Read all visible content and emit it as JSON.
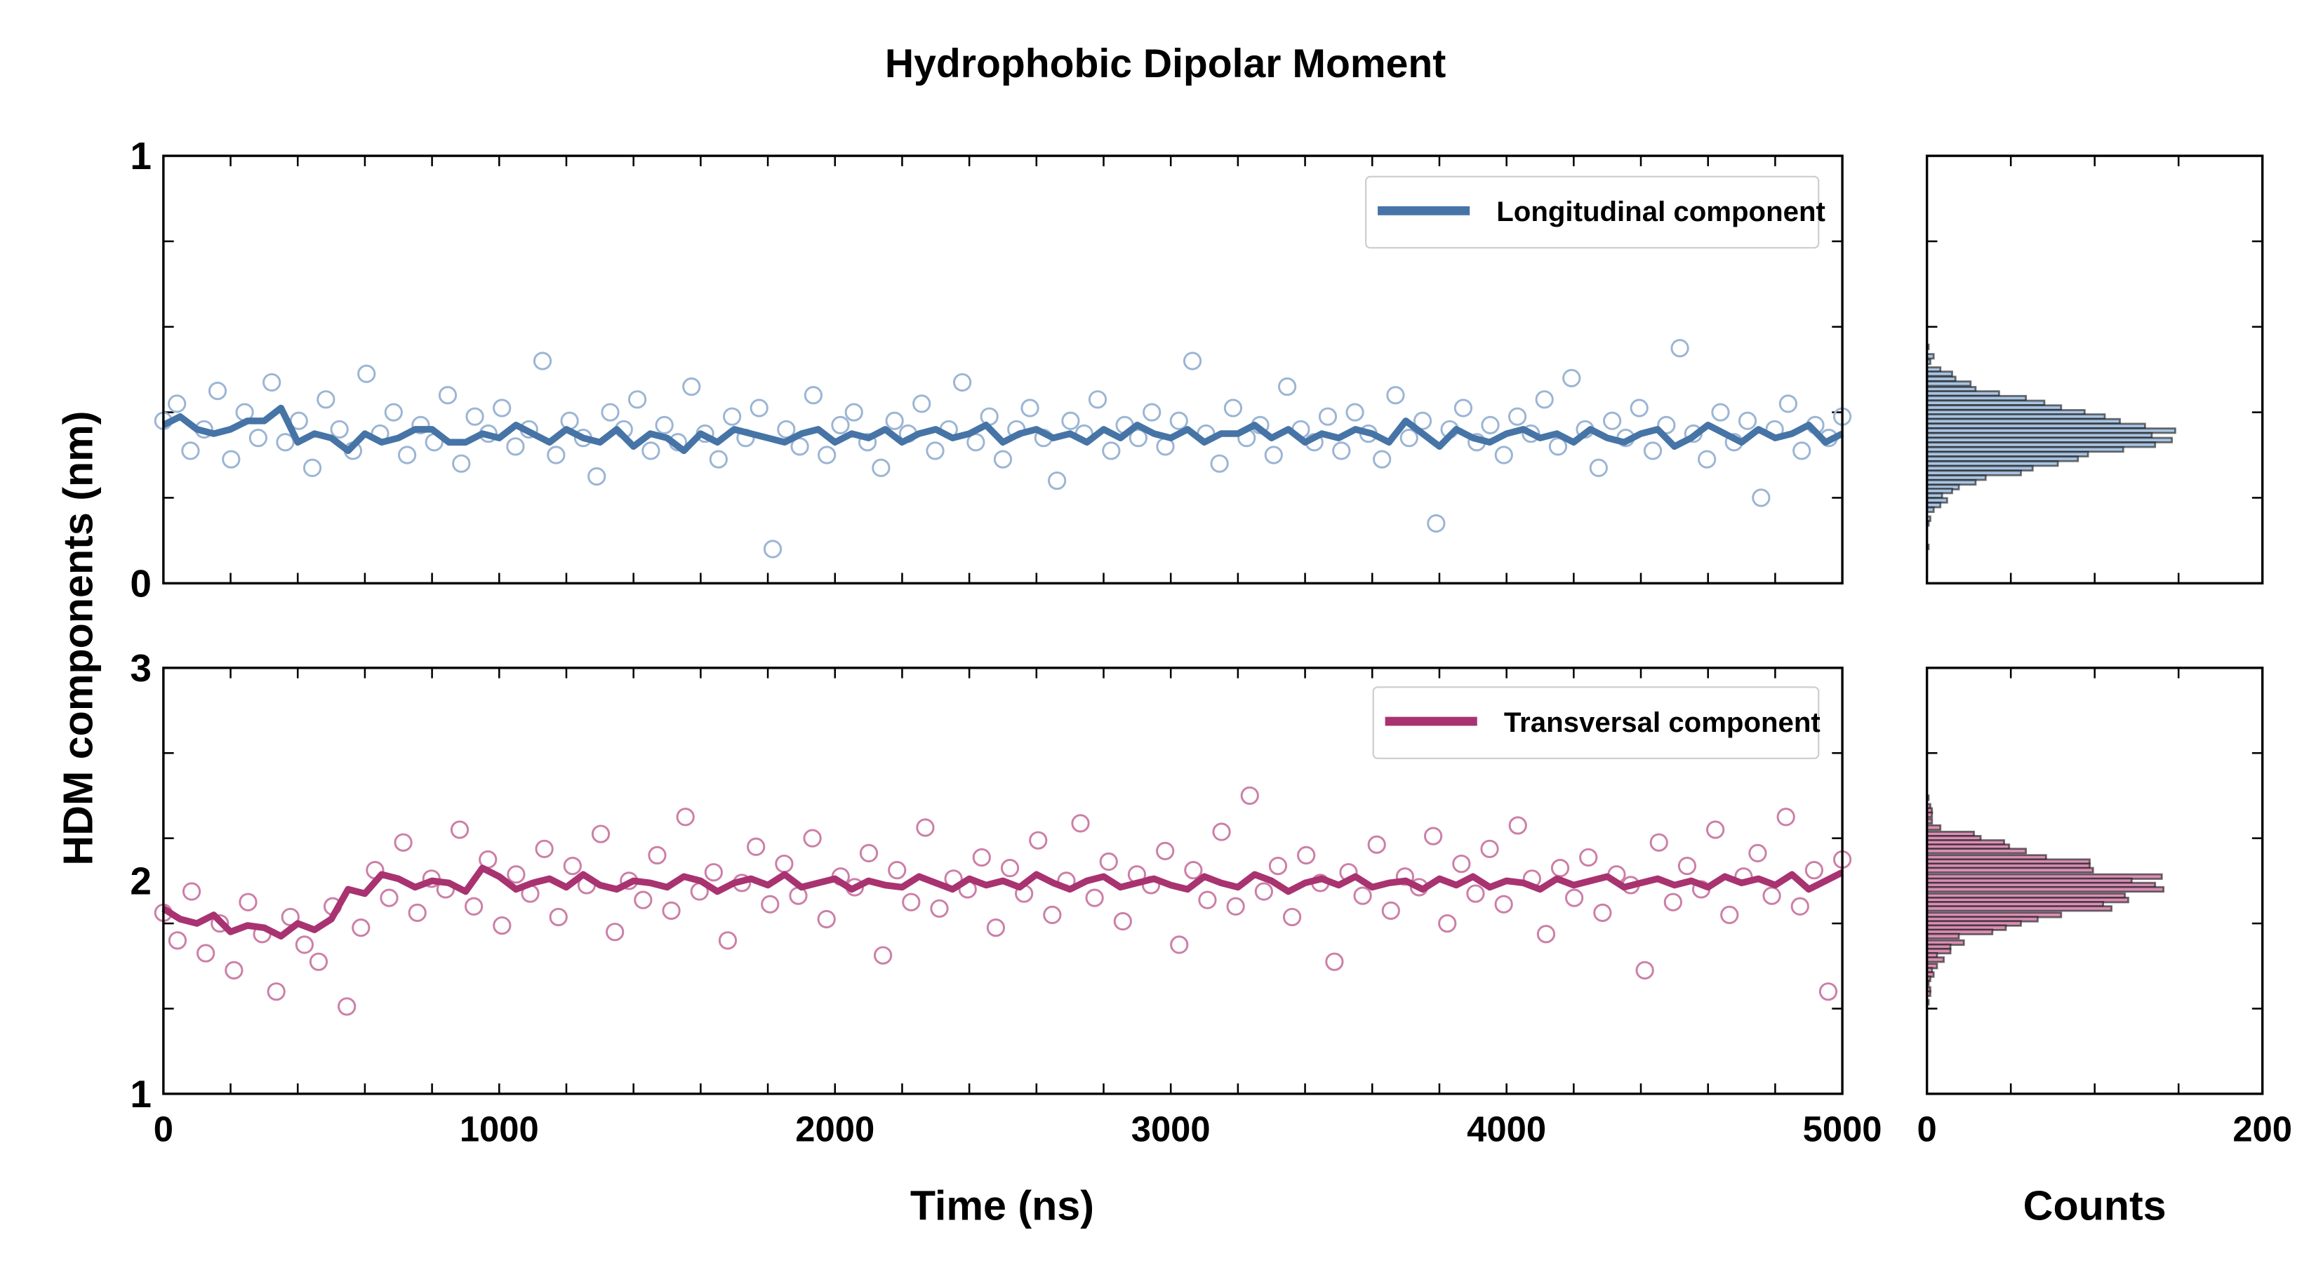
{
  "title": "Hydrophobic Dipolar Moment",
  "shared_ylabel": "HDM components (nm)",
  "chart_data": [
    {
      "type": "scatter",
      "panel": "top-time-series",
      "legend": "Longitudinal component",
      "legend_placement": "top-right",
      "color_line": "#4674a6",
      "color_marker": "#9bb5d4",
      "xlabel": "",
      "xlim": [
        0,
        5000
      ],
      "ylim": [
        0,
        1
      ],
      "yticks": [
        0,
        1
      ],
      "ytick_labels": [
        "0",
        "1"
      ],
      "scatter_y": [
        0.38,
        0.42,
        0.31,
        0.36,
        0.45,
        0.29,
        0.4,
        0.34,
        0.47,
        0.33,
        0.38,
        0.27,
        0.43,
        0.36,
        0.31,
        0.49,
        0.35,
        0.4,
        0.3,
        0.37,
        0.33,
        0.44,
        0.28,
        0.39,
        0.35,
        0.41,
        0.32,
        0.36,
        0.52,
        0.3,
        0.38,
        0.34,
        0.25,
        0.4,
        0.36,
        0.43,
        0.31,
        0.37,
        0.33,
        0.46,
        0.35,
        0.29,
        0.39,
        0.34,
        0.41,
        0.08,
        0.36,
        0.32,
        0.44,
        0.3,
        0.37,
        0.4,
        0.33,
        0.27,
        0.38,
        0.35,
        0.42,
        0.31,
        0.36,
        0.47,
        0.33,
        0.39,
        0.29,
        0.36,
        0.41,
        0.34,
        0.24,
        0.38,
        0.35,
        0.43,
        0.31,
        0.37,
        0.34,
        0.4,
        0.32,
        0.38,
        0.52,
        0.35,
        0.28,
        0.41,
        0.34,
        0.37,
        0.3,
        0.46,
        0.36,
        0.33,
        0.39,
        0.31,
        0.4,
        0.35,
        0.29,
        0.44,
        0.34,
        0.38,
        0.14,
        0.36,
        0.41,
        0.33,
        0.37,
        0.3,
        0.39,
        0.35,
        0.43,
        0.32,
        0.48,
        0.36,
        0.27,
        0.38,
        0.34,
        0.41,
        0.31,
        0.37,
        0.55,
        0.35,
        0.29,
        0.4,
        0.33,
        0.38,
        0.2,
        0.36,
        0.42,
        0.31,
        0.37,
        0.34,
        0.39
      ],
      "running_mean_y": [
        0.37,
        0.39,
        0.36,
        0.35,
        0.36,
        0.38,
        0.38,
        0.41,
        0.33,
        0.35,
        0.34,
        0.31,
        0.35,
        0.33,
        0.34,
        0.36,
        0.36,
        0.33,
        0.33,
        0.35,
        0.34,
        0.37,
        0.35,
        0.33,
        0.36,
        0.34,
        0.33,
        0.36,
        0.32,
        0.35,
        0.34,
        0.31,
        0.35,
        0.33,
        0.36,
        0.35,
        0.34,
        0.33,
        0.35,
        0.36,
        0.33,
        0.35,
        0.34,
        0.36,
        0.33,
        0.35,
        0.36,
        0.34,
        0.35,
        0.37,
        0.33,
        0.35,
        0.36,
        0.34,
        0.35,
        0.33,
        0.36,
        0.34,
        0.37,
        0.35,
        0.34,
        0.36,
        0.33,
        0.35,
        0.35,
        0.37,
        0.34,
        0.36,
        0.33,
        0.35,
        0.34,
        0.36,
        0.35,
        0.33,
        0.38,
        0.35,
        0.32,
        0.36,
        0.34,
        0.33,
        0.35,
        0.36,
        0.34,
        0.35,
        0.33,
        0.36,
        0.34,
        0.33,
        0.35,
        0.36,
        0.32,
        0.34,
        0.37,
        0.35,
        0.33,
        0.36,
        0.34,
        0.35,
        0.37,
        0.33,
        0.35
      ]
    },
    {
      "type": "scatter",
      "panel": "bottom-time-series",
      "legend": "Transversal component",
      "legend_placement": "top-right",
      "color_line": "#a83370",
      "color_marker": "#cc7fa7",
      "xlabel": "Time (ns)",
      "xlim": [
        0,
        5000
      ],
      "xticks": [
        0,
        1000,
        2000,
        3000,
        4000,
        5000
      ],
      "xtick_labels": [
        "0",
        "1000",
        "2000",
        "3000",
        "4000",
        "5000"
      ],
      "ylim": [
        1,
        3
      ],
      "yticks": [
        1,
        2,
        3
      ],
      "ytick_labels": [
        "1",
        "2",
        "3"
      ],
      "scatter_y": [
        1.85,
        1.72,
        1.95,
        1.66,
        1.8,
        1.58,
        1.9,
        1.75,
        1.48,
        1.83,
        1.7,
        1.62,
        1.88,
        1.41,
        1.78,
        2.05,
        1.92,
        2.18,
        1.85,
        2.01,
        1.96,
        2.24,
        1.88,
        2.1,
        1.79,
        2.03,
        1.94,
        2.15,
        1.83,
        2.07,
        1.98,
        2.22,
        1.76,
        2.0,
        1.91,
        2.12,
        1.86,
        2.3,
        1.95,
        2.04,
        1.72,
        1.99,
        2.16,
        1.89,
        2.08,
        1.93,
        2.2,
        1.82,
        2.02,
        1.97,
        2.13,
        1.65,
        2.05,
        1.9,
        2.25,
        1.87,
        2.01,
        1.96,
        2.11,
        1.78,
        2.06,
        1.94,
        2.19,
        1.84,
        2.0,
        2.27,
        1.92,
        2.09,
        1.81,
        2.03,
        1.98,
        2.14,
        1.7,
        2.05,
        1.91,
        2.23,
        1.88,
        2.4,
        1.95,
        2.07,
        1.83,
        2.12,
        1.99,
        1.62,
        2.04,
        1.93,
        2.17,
        1.86,
        2.02,
        1.97,
        2.21,
        1.8,
        2.08,
        1.94,
        2.15,
        1.89,
        2.26,
        2.01,
        1.75,
        2.06,
        1.92,
        2.11,
        1.85,
        2.03,
        1.98,
        1.58,
        2.18,
        1.9,
        2.07,
        1.96,
        2.24,
        1.84,
        2.02,
        2.13,
        1.93,
        2.3,
        1.88,
        2.05,
        1.48,
        2.1
      ],
      "running_mean_y": [
        1.87,
        1.82,
        1.8,
        1.84,
        1.76,
        1.79,
        1.78,
        1.74,
        1.8,
        1.77,
        1.82,
        1.96,
        1.94,
        2.03,
        2.01,
        1.97,
        2.0,
        1.99,
        1.95,
        2.06,
        2.02,
        1.96,
        1.99,
        2.01,
        1.97,
        2.03,
        1.98,
        1.96,
        2.0,
        1.99,
        1.97,
        2.02,
        2.0,
        1.95,
        1.99,
        2.01,
        1.98,
        2.03,
        1.97,
        1.99,
        2.01,
        1.96,
        2.0,
        1.98,
        1.97,
        2.02,
        1.99,
        1.96,
        2.01,
        1.98,
        2.0,
        1.97,
        2.03,
        1.99,
        1.96,
        2.0,
        2.02,
        1.97,
        1.99,
        2.01,
        1.98,
        1.96,
        2.02,
        1.99,
        1.97,
        2.03,
        2.0,
        1.95,
        1.99,
        2.01,
        1.98,
        2.02,
        1.97,
        1.99,
        2.0,
        1.96,
        2.01,
        1.98,
        2.02,
        1.97,
        2.0,
        1.99,
        1.96,
        2.01,
        1.98,
        2.0,
        2.02,
        1.97,
        1.99,
        2.01,
        1.98,
        2.0,
        1.97,
        2.02,
        1.99,
        2.01,
        1.98,
        2.03,
        1.96,
        2.0,
        2.04
      ]
    },
    {
      "type": "bar",
      "orientation": "horizontal",
      "panel": "top-histogram",
      "color_fill": "#a9c4e2",
      "xlim": [
        0,
        200
      ],
      "ylim": [
        0,
        1
      ],
      "bin_centers": [
        0.553,
        0.531,
        0.518,
        0.5,
        0.49,
        0.478,
        0.467,
        0.454,
        0.444,
        0.433,
        0.422,
        0.411,
        0.4,
        0.39,
        0.379,
        0.368,
        0.357,
        0.346,
        0.335,
        0.324,
        0.313,
        0.302,
        0.291,
        0.28,
        0.269,
        0.258,
        0.247,
        0.236,
        0.225,
        0.216,
        0.205,
        0.194,
        0.183,
        0.172,
        0.151,
        0.14,
        0.085
      ],
      "counts": [
        1,
        4,
        2,
        8,
        15,
        17,
        26,
        29,
        43,
        59,
        70,
        80,
        94,
        106,
        115,
        130,
        148,
        134,
        146,
        136,
        117,
        96,
        90,
        78,
        63,
        56,
        35,
        29,
        19,
        15,
        9,
        12,
        8,
        4,
        2,
        1,
        1
      ]
    },
    {
      "type": "bar",
      "orientation": "horizontal",
      "panel": "bottom-histogram",
      "color_fill": "#d98fb5",
      "xlabel": "Counts",
      "xlim": [
        0,
        200
      ],
      "xticks": [
        0,
        50,
        100,
        150,
        200
      ],
      "xtick_labels": [
        "0",
        "200"
      ],
      "ylim": [
        1,
        3
      ],
      "bin_centers": [
        2.39,
        2.35,
        2.33,
        2.31,
        2.28,
        2.25,
        2.22,
        2.2,
        2.18,
        2.16,
        2.14,
        2.11,
        2.09,
        2.07,
        2.05,
        2.02,
        2.0,
        1.98,
        1.96,
        1.93,
        1.91,
        1.89,
        1.87,
        1.84,
        1.82,
        1.8,
        1.78,
        1.76,
        1.74,
        1.71,
        1.69,
        1.67,
        1.65,
        1.63,
        1.6,
        1.58,
        1.56,
        1.54,
        1.52,
        1.49,
        1.47,
        1.43
      ],
      "counts": [
        1,
        2,
        3,
        3,
        3,
        8,
        28,
        32,
        46,
        49,
        59,
        71,
        97,
        97,
        99,
        140,
        122,
        136,
        141,
        118,
        120,
        105,
        110,
        80,
        66,
        56,
        47,
        39,
        19,
        22,
        14,
        14,
        6,
        10,
        6,
        3,
        4,
        2,
        1,
        2,
        2,
        1
      ]
    }
  ]
}
